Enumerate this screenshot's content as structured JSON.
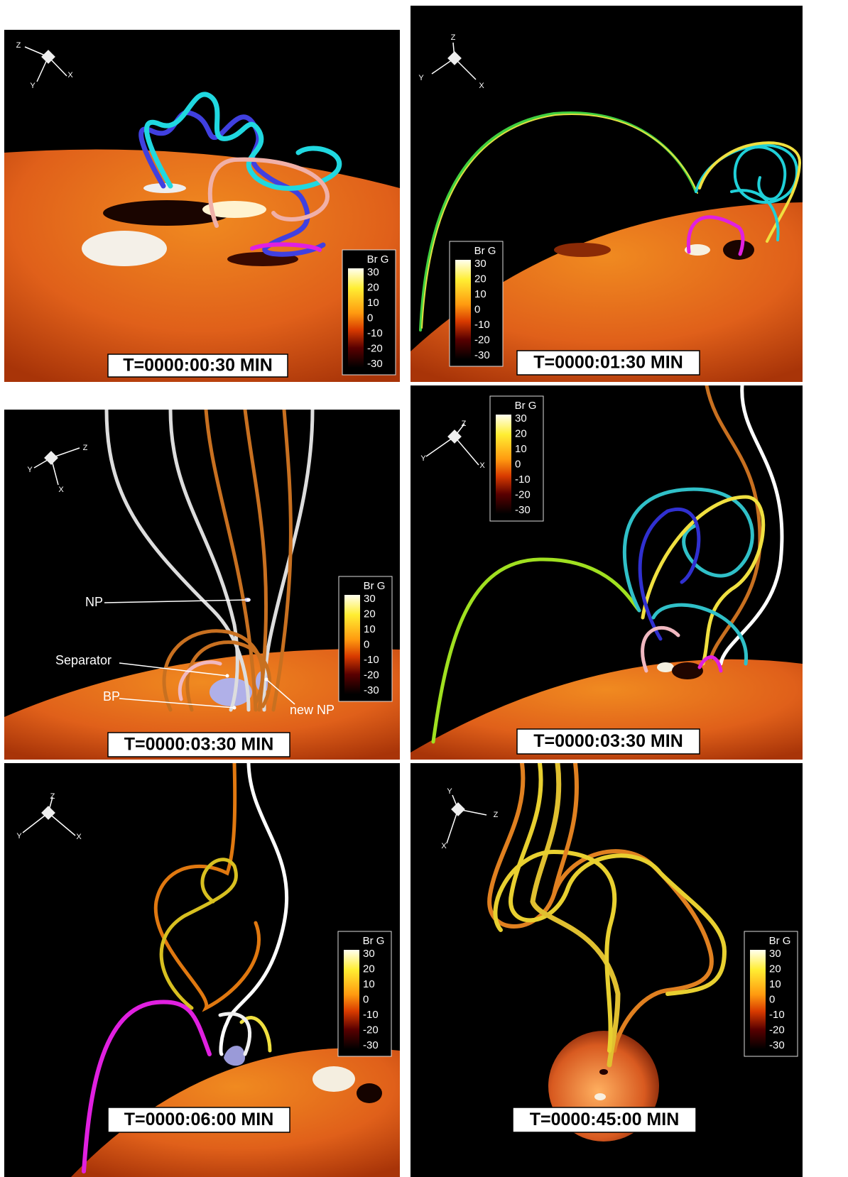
{
  "panels": [
    {
      "time": "T=0000:00:30 MIN",
      "triad": [
        "Z",
        "Y",
        "X"
      ],
      "colorbar": {
        "title": "Br G",
        "ticks": [
          30,
          20,
          10,
          0,
          -10,
          -20,
          -30
        ]
      }
    },
    {
      "time": "T=0000:01:30 MIN",
      "triad": [
        "Z",
        "Y",
        "X"
      ],
      "colorbar": {
        "title": "Br G",
        "ticks": [
          30,
          20,
          10,
          0,
          -10,
          -20,
          -30
        ]
      }
    },
    {
      "time": "T=0000:03:30 MIN",
      "triad": [
        "Z",
        "Y",
        "X"
      ],
      "colorbar": {
        "title": "Br G",
        "ticks": [
          30,
          20,
          10,
          0,
          -10,
          -20,
          -30
        ]
      },
      "annotations": [
        "NP",
        "Separator",
        "BP",
        "new NP"
      ]
    },
    {
      "time": "T=0000:03:30 MIN",
      "triad": [
        "Z",
        "Y",
        "X"
      ],
      "colorbar": {
        "title": "Br G",
        "ticks": [
          30,
          20,
          10,
          0,
          -10,
          -20,
          -30
        ]
      }
    },
    {
      "time": "T=0000:06:00 MIN",
      "triad": [
        "Z",
        "Y",
        "X"
      ],
      "colorbar": {
        "title": "Br G",
        "ticks": [
          30,
          20,
          10,
          0,
          -10,
          -20,
          -30
        ]
      }
    },
    {
      "time": "T=0000:45:00 MIN",
      "triad": [
        "Y",
        "Z",
        "X"
      ],
      "colorbar": {
        "title": "Br G",
        "ticks": [
          30,
          20,
          10,
          0,
          -10,
          -20,
          -30
        ]
      }
    }
  ]
}
